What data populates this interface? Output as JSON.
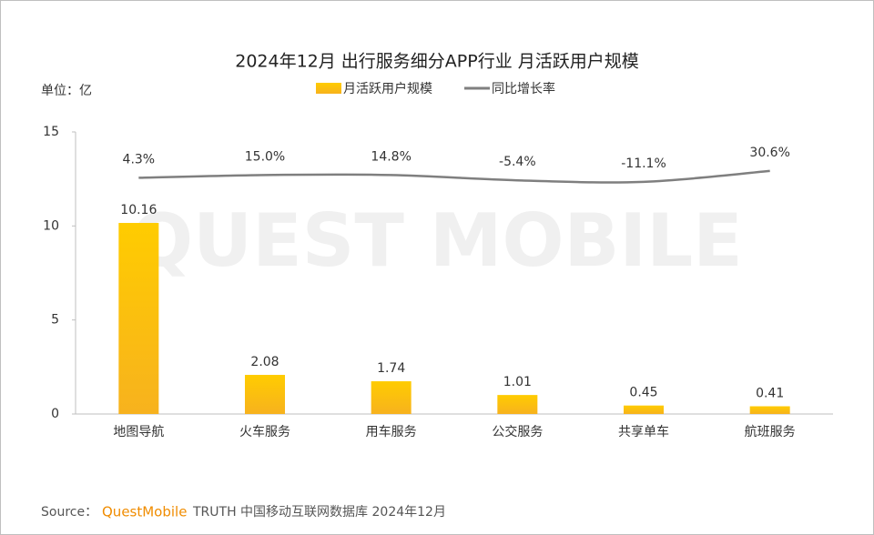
{
  "chart_data": {
    "type": "bar",
    "title": "2024年12月 出行服务细分APP行业 月活跃用户规模",
    "y_label": "单位：亿",
    "watermark": "QUEST MOBILE",
    "categories": [
      "地图导航",
      "火车服务",
      "用车服务",
      "公交服务",
      "共享单车",
      "航班服务"
    ],
    "series": [
      {
        "name": "月活跃用户规模",
        "type": "bar",
        "color": "#ffc000",
        "values": [
          10.16,
          2.08,
          1.74,
          1.01,
          0.45,
          0.41
        ]
      },
      {
        "name": "同比增长率",
        "type": "line",
        "axis": "y2",
        "color": "#7f7f7f",
        "values": [
          4.3,
          15.0,
          14.8,
          -5.4,
          -11.1,
          30.6
        ],
        "value_labels": [
          "4.3%",
          "15.0%",
          "14.8%",
          "-5.4%",
          "-11.1%",
          "30.6%"
        ]
      }
    ],
    "ylim": [
      0,
      15
    ],
    "yticks": [
      0,
      5,
      10,
      15
    ],
    "y2lim": [
      -900,
      180
    ],
    "legend": "top"
  },
  "source": {
    "prefix": "Source：",
    "brand": "QuestMobile",
    "text": "TRUTH 中国移动互联网数据库 2024年12月"
  }
}
